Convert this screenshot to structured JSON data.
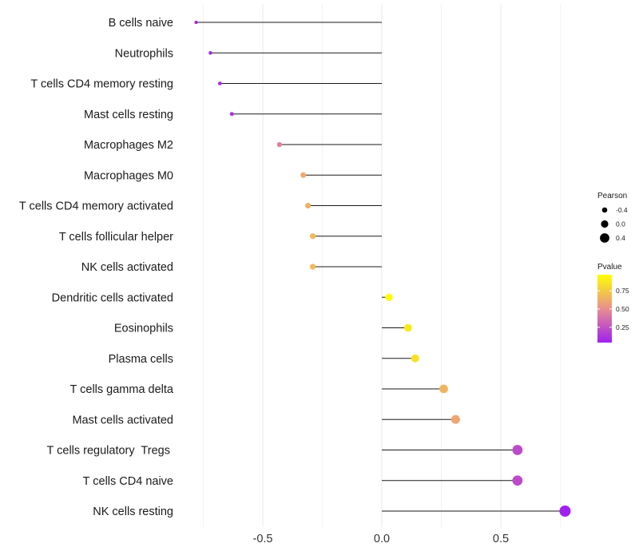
{
  "chart_data": {
    "type": "lollipop",
    "title": "",
    "xlabel": "",
    "ylabel": "",
    "xlim": [
      -0.82,
      0.82
    ],
    "x_ticks": [
      -0.5,
      0.0,
      0.5
    ],
    "x_tick_labels": [
      "-0.5",
      "0.0",
      "0.5"
    ],
    "grid": true,
    "categories": [
      "B cells naive",
      "Neutrophils",
      "T cells CD4 memory resting",
      "Mast cells resting",
      "Macrophages M2",
      "Macrophages M0",
      "T cells CD4 memory activated",
      "T cells follicular helper",
      "NK cells activated",
      "Dendritic cells activated",
      "Eosinophils",
      "Plasma cells",
      "T cells gamma delta",
      "Mast cells activated",
      "T cells regulatory  Tregs ",
      "T cells CD4 naive",
      "NK cells resting"
    ],
    "pearson": [
      -0.78,
      -0.72,
      -0.68,
      -0.63,
      -0.43,
      -0.33,
      -0.31,
      -0.29,
      -0.29,
      0.03,
      0.11,
      0.14,
      0.26,
      0.31,
      0.57,
      0.57,
      0.77
    ],
    "pvalue": [
      0.04,
      0.06,
      0.08,
      0.12,
      0.45,
      0.62,
      0.65,
      0.68,
      0.68,
      0.97,
      0.88,
      0.84,
      0.66,
      0.6,
      0.22,
      0.22,
      0.04
    ],
    "legend_size": {
      "title": "Pearson",
      "values": [
        -0.4,
        0.0,
        0.4
      ],
      "labels": [
        "-0.4",
        "0.0",
        "0.4"
      ]
    },
    "legend_color": {
      "title": "Pvalue",
      "range": [
        0.04,
        0.97
      ],
      "ticks": [
        0.25,
        0.5,
        0.75
      ],
      "tick_labels": [
        "0.25",
        "0.50",
        "0.75"
      ],
      "low_color": "#a020f0",
      "mid_color": "#e88f8f",
      "high_color": "#ffff00"
    },
    "legend_position": "right"
  }
}
